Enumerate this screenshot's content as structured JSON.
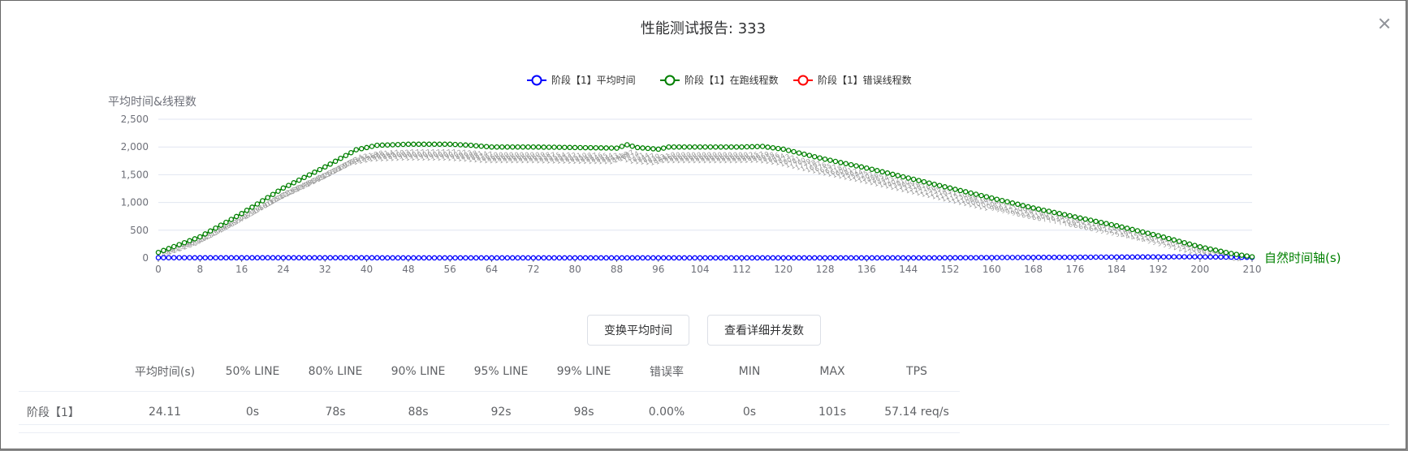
{
  "dialog": {
    "title": "性能测试报告: 333"
  },
  "buttons": {
    "switch_avg": "变换平均时间",
    "view_detail": "查看详细并发数"
  },
  "chart_data": {
    "type": "line",
    "ylabel": "平均时间&线程数",
    "xlabel": "自然时间轴(s)",
    "ylim": [
      0,
      2500
    ],
    "yticks": [
      "0",
      "500",
      "1,000",
      "1,500",
      "2,000",
      "2,500"
    ],
    "xlim": [
      0,
      210
    ],
    "xticks": [
      0,
      8,
      16,
      24,
      32,
      40,
      48,
      56,
      64,
      72,
      80,
      88,
      96,
      104,
      112,
      120,
      128,
      136,
      144,
      152,
      160,
      168,
      176,
      184,
      192,
      200,
      210
    ],
    "xtick_labels": [
      "0",
      "8",
      "16",
      "24",
      "32",
      "40",
      "48",
      "56",
      "64",
      "72",
      "80",
      "88",
      "96",
      "104",
      "112",
      "120",
      "128",
      "136",
      "144",
      "152",
      "160",
      "168",
      "176",
      "184",
      "192",
      "200",
      "210"
    ],
    "legend_position": "top-center",
    "series": [
      {
        "name": "阶段【1】平均时间",
        "color": "#0000ff",
        "points": [
          [
            0,
            5
          ],
          [
            10,
            3
          ],
          [
            50,
            2
          ],
          [
            100,
            2
          ],
          [
            150,
            2
          ],
          [
            195,
            20
          ],
          [
            200,
            20
          ],
          [
            205,
            15
          ],
          [
            210,
            10
          ]
        ]
      },
      {
        "name": "阶段【1】在跑线程数",
        "color": "#008000",
        "points": [
          [
            0,
            100
          ],
          [
            8,
            380
          ],
          [
            16,
            800
          ],
          [
            24,
            1260
          ],
          [
            32,
            1640
          ],
          [
            38,
            1950
          ],
          [
            42,
            2030
          ],
          [
            48,
            2050
          ],
          [
            56,
            2050
          ],
          [
            60,
            2030
          ],
          [
            64,
            2000
          ],
          [
            72,
            2000
          ],
          [
            80,
            1990
          ],
          [
            88,
            1980
          ],
          [
            90,
            2040
          ],
          [
            92,
            1990
          ],
          [
            96,
            1960
          ],
          [
            98,
            2000
          ],
          [
            104,
            2000
          ],
          [
            112,
            2000
          ],
          [
            116,
            2010
          ],
          [
            120,
            1960
          ],
          [
            128,
            1780
          ],
          [
            136,
            1620
          ],
          [
            144,
            1440
          ],
          [
            152,
            1260
          ],
          [
            160,
            1080
          ],
          [
            168,
            900
          ],
          [
            176,
            740
          ],
          [
            184,
            580
          ],
          [
            192,
            400
          ],
          [
            200,
            200
          ],
          [
            206,
            80
          ],
          [
            210,
            20
          ]
        ]
      },
      {
        "name": "阶段【1】错误线程数",
        "color": "#ff0000",
        "points": []
      }
    ]
  },
  "table": {
    "headers": [
      "",
      "平均时间(s)",
      "50% LINE",
      "80% LINE",
      "90% LINE",
      "95% LINE",
      "99% LINE",
      "错误率",
      "MIN",
      "MAX",
      "TPS"
    ],
    "rows": [
      [
        "阶段【1】",
        "24.11",
        "0s",
        "78s",
        "88s",
        "92s",
        "98s",
        "0.00%",
        "0s",
        "101s",
        "57.14 req/s"
      ]
    ]
  }
}
